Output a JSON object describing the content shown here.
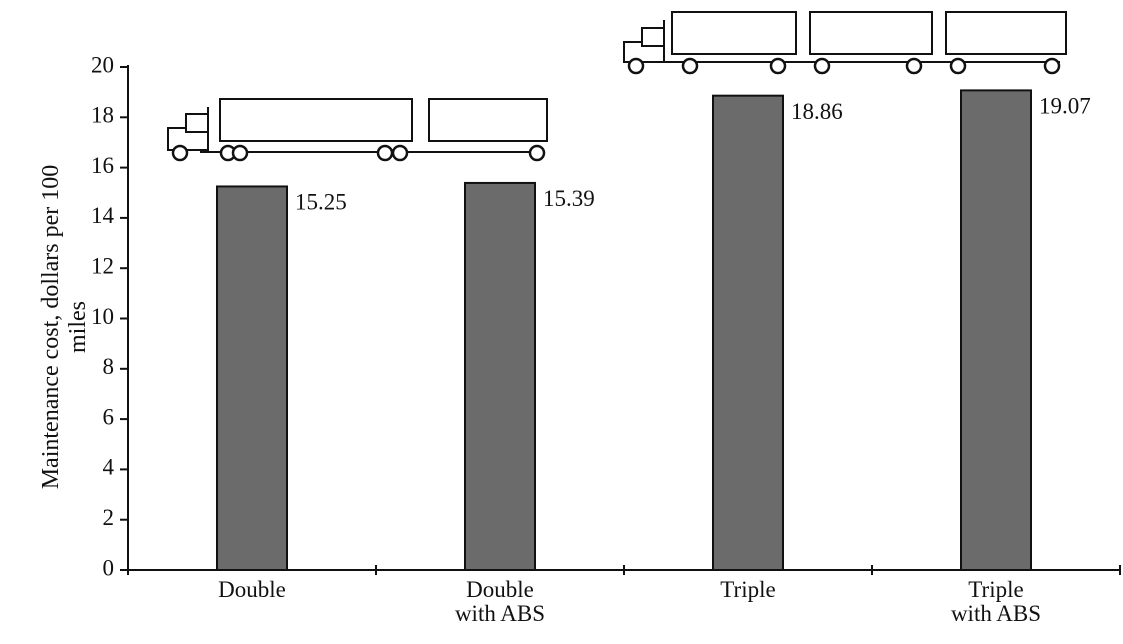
{
  "chart_data": {
    "type": "bar",
    "y_label": "Maintenance cost, dollars per 100 miles",
    "categories": [
      "Double",
      "Double with ABS",
      "Triple",
      "Triple with ABS"
    ],
    "values": [
      15.25,
      15.39,
      18.86,
      19.07
    ],
    "color": "#6b6b6b",
    "ylim": [
      0,
      20
    ],
    "yticks": [
      0,
      2,
      4,
      6,
      8,
      10,
      12,
      14,
      16,
      18,
      20
    ],
    "grid": false
  }
}
